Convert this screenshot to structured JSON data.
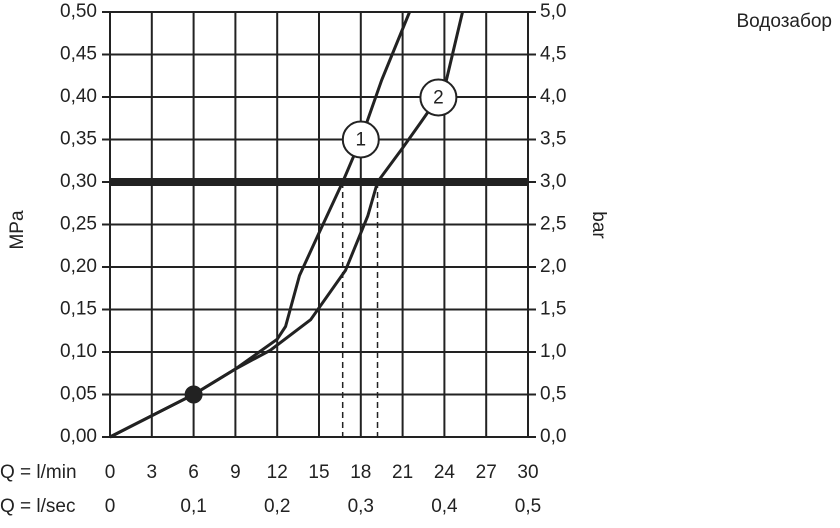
{
  "chart_data": {
    "type": "line",
    "title": "Водозабор",
    "ylabel": "MPa",
    "y2label": "bar",
    "xlabel": "Q = l/min",
    "x2label": "Q = l/sec",
    "xlim": [
      0,
      30
    ],
    "xticks": [
      0,
      3,
      6,
      9,
      12,
      15,
      18,
      21,
      24,
      27,
      30
    ],
    "x2lim": [
      0,
      0.5
    ],
    "x2ticks": [
      0,
      {
        "value": 0.1,
        "label": "0,1"
      },
      {
        "value": 0.2,
        "label": "0,2"
      },
      {
        "value": 0.3,
        "label": "0,3"
      },
      {
        "value": 0.4,
        "label": "0,4"
      },
      {
        "value": 0.5,
        "label": "0,5"
      }
    ],
    "ylim": [
      0,
      0.5
    ],
    "yticks": [
      {
        "value": 0,
        "label": "0,00"
      },
      {
        "value": 0.05,
        "label": "0,05"
      },
      {
        "value": 0.1,
        "label": "0,10"
      },
      {
        "value": 0.15,
        "label": "0,15"
      },
      {
        "value": 0.2,
        "label": "0,20"
      },
      {
        "value": 0.25,
        "label": "0,25"
      },
      {
        "value": 0.3,
        "label": "0,30"
      },
      {
        "value": 0.35,
        "label": "0,35"
      },
      {
        "value": 0.4,
        "label": "0,40"
      },
      {
        "value": 0.45,
        "label": "0,45"
      },
      {
        "value": 0.5,
        "label": "0,50"
      }
    ],
    "y2lim": [
      0,
      5
    ],
    "y2ticks": [
      {
        "value": 0,
        "label": "0,0"
      },
      {
        "value": 0.5,
        "label": "0,5"
      },
      {
        "value": 1,
        "label": "1,0"
      },
      {
        "value": 1.5,
        "label": "1,5"
      },
      {
        "value": 2,
        "label": "2,0"
      },
      {
        "value": 2.5,
        "label": "2,5"
      },
      {
        "value": 3,
        "label": "3,0"
      },
      {
        "value": 3.5,
        "label": "3,5"
      },
      {
        "value": 4,
        "label": "4,0"
      },
      {
        "value": 4.5,
        "label": "4,5"
      },
      {
        "value": 5,
        "label": "5,0"
      }
    ],
    "grid": true,
    "color": "#222222",
    "series": [
      {
        "name": "1",
        "x": [
          0,
          6,
          9,
          12,
          12.6,
          13.6,
          15,
          16.7,
          18,
          19.5,
          21.5
        ],
        "values": [
          0,
          0.05,
          0.08,
          0.115,
          0.13,
          0.19,
          0.24,
          0.3,
          0.35,
          0.42,
          0.5
        ]
      },
      {
        "name": "2",
        "x": [
          0,
          6,
          9,
          11.5,
          14.4,
          16.9,
          18.5,
          19.2,
          21,
          22.3,
          24,
          25.3
        ],
        "values": [
          0,
          0.05,
          0.08,
          0.102,
          0.138,
          0.196,
          0.26,
          0.3,
          0.34,
          0.37,
          0.41,
          0.5
        ]
      }
    ],
    "hline": 0.3,
    "vlines": [
      16.7,
      19.2
    ],
    "marker": {
      "x": 6,
      "y": 0.05
    }
  }
}
